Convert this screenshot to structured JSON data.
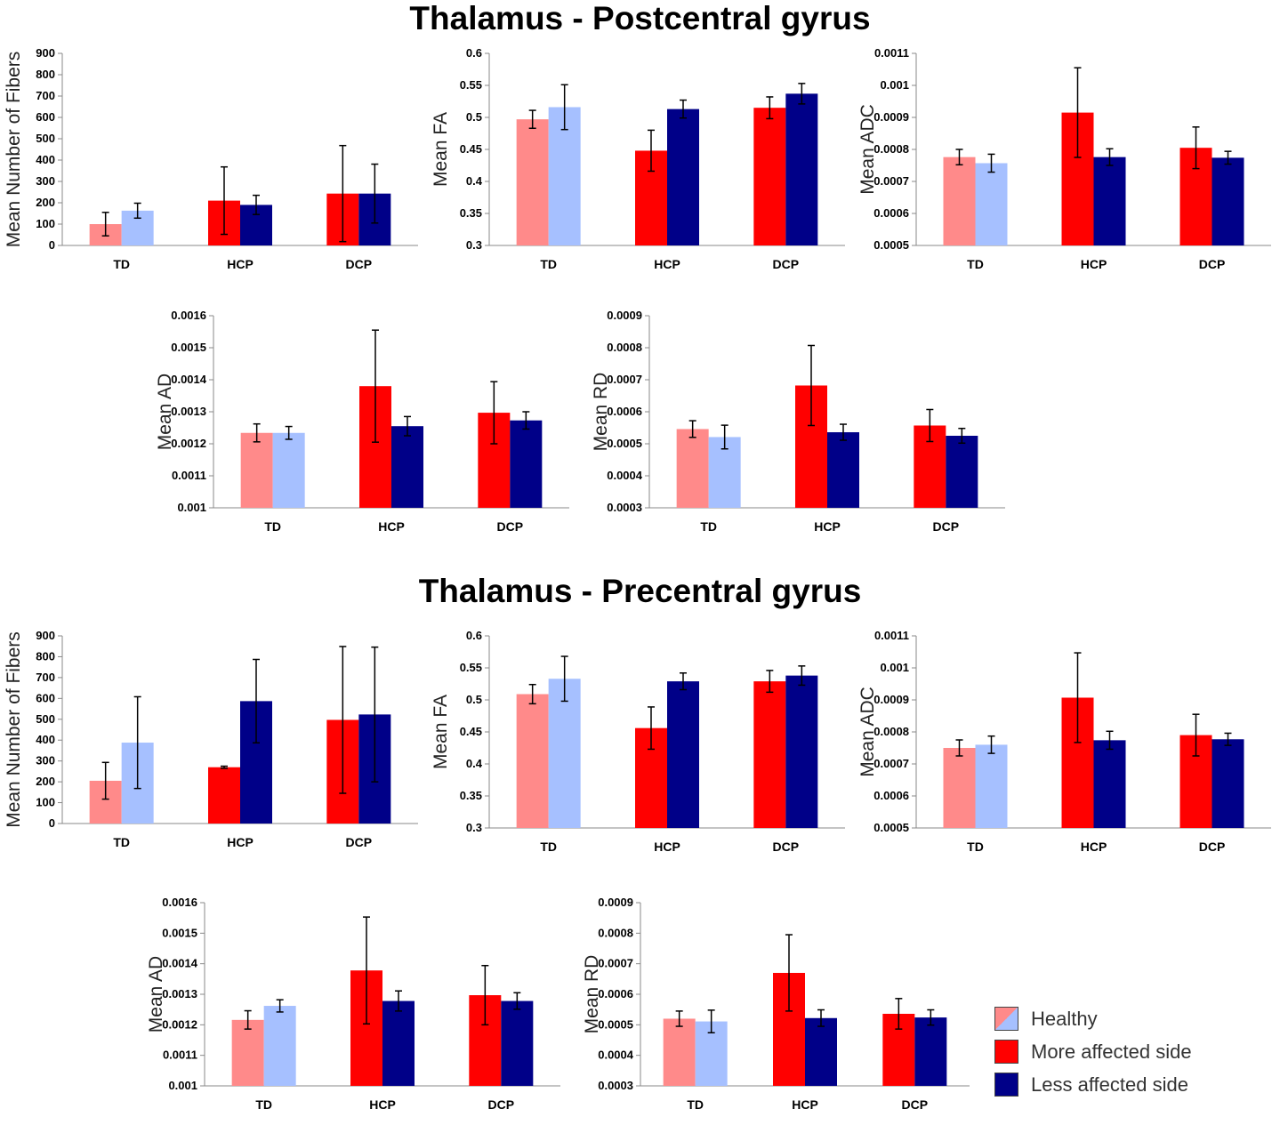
{
  "titles": {
    "postcentral": "Thalamus - Postcentral gyrus",
    "precentral": "Thalamus - Precentral gyrus"
  },
  "colors": {
    "healthy_left": "#ff8a8a",
    "healthy_right": "#a6c0ff",
    "more_affected": "#ff0000",
    "less_affected": "#000088",
    "error_bar": "#000000"
  },
  "legend": {
    "healthy": "Healthy",
    "more_affected": "More affected side",
    "less_affected": "Less affected side"
  },
  "chart_data": [
    {
      "id": "post-fibers",
      "type": "bar",
      "section": "Thalamus - Postcentral gyrus",
      "ylabel": "Mean Number of Fibers",
      "categories": [
        "TD",
        "HCP",
        "DCP"
      ],
      "ylim": [
        0,
        900
      ],
      "yticks": [
        "0",
        "100",
        "200",
        "300",
        "400",
        "500",
        "600",
        "700",
        "800",
        "900"
      ],
      "series": [
        {
          "name": "More affected side",
          "values": [
            100,
            210,
            243
          ],
          "errors": [
            55,
            158,
            225
          ]
        },
        {
          "name": "Less affected side",
          "values": [
            163,
            190,
            243
          ],
          "errors": [
            35,
            45,
            138
          ]
        }
      ]
    },
    {
      "id": "post-fa",
      "type": "bar",
      "section": "Thalamus - Postcentral gyrus",
      "ylabel": "Mean FA",
      "categories": [
        "TD",
        "HCP",
        "DCP"
      ],
      "ylim": [
        0.3,
        0.6
      ],
      "yticks": [
        "0.3",
        "0.35",
        "0.4",
        "0.45",
        "0.5",
        "0.55",
        "0.6"
      ],
      "series": [
        {
          "name": "More affected side",
          "values": [
            0.497,
            0.448,
            0.515
          ],
          "errors": [
            0.014,
            0.032,
            0.017
          ]
        },
        {
          "name": "Less affected side",
          "values": [
            0.516,
            0.513,
            0.537
          ],
          "errors": [
            0.035,
            0.014,
            0.016
          ]
        }
      ]
    },
    {
      "id": "post-adc",
      "type": "bar",
      "section": "Thalamus - Postcentral gyrus",
      "ylabel": "Mean ADC",
      "categories": [
        "TD",
        "HCP",
        "DCP"
      ],
      "ylim": [
        0.0005,
        0.0011
      ],
      "yticks": [
        "0.0005",
        "0.0006",
        "0.0007",
        "0.0008",
        "0.0009",
        "0.001",
        "0.0011"
      ],
      "series": [
        {
          "name": "More affected side",
          "values": [
            0.000776,
            0.000915,
            0.000805
          ],
          "errors": [
            2.4e-05,
            0.00014,
            6.5e-05
          ]
        },
        {
          "name": "Less affected side",
          "values": [
            0.000757,
            0.000776,
            0.000774
          ],
          "errors": [
            2.8e-05,
            2.6e-05,
            2e-05
          ]
        }
      ]
    },
    {
      "id": "post-ad",
      "type": "bar",
      "section": "Thalamus - Postcentral gyrus",
      "ylabel": "Mean AD",
      "categories": [
        "TD",
        "HCP",
        "DCP"
      ],
      "ylim": [
        0.001,
        0.0016
      ],
      "yticks": [
        "0.001",
        "0.0011",
        "0.0012",
        "0.0013",
        "0.0014",
        "0.0015",
        "0.0016"
      ],
      "series": [
        {
          "name": "More affected side",
          "values": [
            0.001234,
            0.00138,
            0.001297
          ],
          "errors": [
            2.8e-05,
            0.000175,
            9.7e-05
          ]
        },
        {
          "name": "Less affected side",
          "values": [
            0.001234,
            0.001255,
            0.001273
          ],
          "errors": [
            2e-05,
            3e-05,
            2.7e-05
          ]
        }
      ]
    },
    {
      "id": "post-rd",
      "type": "bar",
      "section": "Thalamus - Postcentral gyrus",
      "ylabel": "Mean RD",
      "categories": [
        "TD",
        "HCP",
        "DCP"
      ],
      "ylim": [
        0.0003,
        0.0009
      ],
      "yticks": [
        "0.0003",
        "0.0004",
        "0.0005",
        "0.0006",
        "0.0007",
        "0.0008",
        "0.0009"
      ],
      "series": [
        {
          "name": "More affected side",
          "values": [
            0.000546,
            0.000682,
            0.000557
          ],
          "errors": [
            2.6e-05,
            0.000125,
            5e-05
          ]
        },
        {
          "name": "Less affected side",
          "values": [
            0.000521,
            0.000536,
            0.000525
          ],
          "errors": [
            3.7e-05,
            2.5e-05,
            2.3e-05
          ]
        }
      ]
    },
    {
      "id": "pre-fibers",
      "type": "bar",
      "section": "Thalamus - Precentral gyrus",
      "ylabel": "Mean Number of Fibers",
      "categories": [
        "TD",
        "HCP",
        "DCP"
      ],
      "ylim": [
        0,
        900
      ],
      "yticks": [
        "0",
        "100",
        "200",
        "300",
        "400",
        "500",
        "600",
        "700",
        "800",
        "900"
      ],
      "series": [
        {
          "name": "More affected side",
          "values": [
            205,
            270,
            497
          ],
          "errors": [
            88,
            5,
            352
          ]
        },
        {
          "name": "Less affected side",
          "values": [
            388,
            587,
            523
          ],
          "errors": [
            220,
            200,
            323
          ]
        }
      ]
    },
    {
      "id": "pre-fa",
      "type": "bar",
      "section": "Thalamus - Precentral gyrus",
      "ylabel": "Mean FA",
      "categories": [
        "TD",
        "HCP",
        "DCP"
      ],
      "ylim": [
        0.3,
        0.6
      ],
      "yticks": [
        "0.3",
        "0.35",
        "0.4",
        "0.45",
        "0.5",
        "0.55",
        "0.6"
      ],
      "series": [
        {
          "name": "More affected side",
          "values": [
            0.509,
            0.456,
            0.529
          ],
          "errors": [
            0.015,
            0.033,
            0.017
          ]
        },
        {
          "name": "Less affected side",
          "values": [
            0.533,
            0.529,
            0.538
          ],
          "errors": [
            0.035,
            0.013,
            0.015
          ]
        }
      ]
    },
    {
      "id": "pre-adc",
      "type": "bar",
      "section": "Thalamus - Precentral gyrus",
      "ylabel": "Mean ADC",
      "categories": [
        "TD",
        "HCP",
        "DCP"
      ],
      "ylim": [
        0.0005,
        0.0011
      ],
      "yticks": [
        "0.0005",
        "0.0006",
        "0.0007",
        "0.0008",
        "0.0009",
        "0.001",
        "0.0011"
      ],
      "series": [
        {
          "name": "More affected side",
          "values": [
            0.00075,
            0.000907,
            0.00079
          ],
          "errors": [
            2.5e-05,
            0.00014,
            6.5e-05
          ]
        },
        {
          "name": "Less affected side",
          "values": [
            0.00076,
            0.000774,
            0.000777
          ],
          "errors": [
            2.7e-05,
            2.8e-05,
            1.9e-05
          ]
        }
      ]
    },
    {
      "id": "pre-ad",
      "type": "bar",
      "section": "Thalamus - Precentral gyrus",
      "ylabel": "Mean AD",
      "categories": [
        "TD",
        "HCP",
        "DCP"
      ],
      "ylim": [
        0.001,
        0.0016
      ],
      "yticks": [
        "0.001",
        "0.0011",
        "0.0012",
        "0.0013",
        "0.0014",
        "0.0015",
        "0.0016"
      ],
      "series": [
        {
          "name": "More affected side",
          "values": [
            0.001216,
            0.001378,
            0.001297
          ],
          "errors": [
            3e-05,
            0.000175,
            9.7e-05
          ]
        },
        {
          "name": "Less affected side",
          "values": [
            0.001262,
            0.001278,
            0.001278
          ],
          "errors": [
            2e-05,
            3.3e-05,
            2.7e-05
          ]
        }
      ]
    },
    {
      "id": "pre-rd",
      "type": "bar",
      "section": "Thalamus - Precentral gyrus",
      "ylabel": "Mean RD",
      "categories": [
        "TD",
        "HCP",
        "DCP"
      ],
      "ylim": [
        0.0003,
        0.0009
      ],
      "yticks": [
        "0.0003",
        "0.0004",
        "0.0005",
        "0.0006",
        "0.0007",
        "0.0008",
        "0.0009"
      ],
      "series": [
        {
          "name": "More affected side",
          "values": [
            0.00052,
            0.00067,
            0.000536
          ],
          "errors": [
            2.5e-05,
            0.000125,
            5e-05
          ]
        },
        {
          "name": "Less affected side",
          "values": [
            0.000511,
            0.000522,
            0.000524
          ],
          "errors": [
            3.7e-05,
            2.7e-05,
            2.5e-05
          ]
        }
      ]
    }
  ]
}
